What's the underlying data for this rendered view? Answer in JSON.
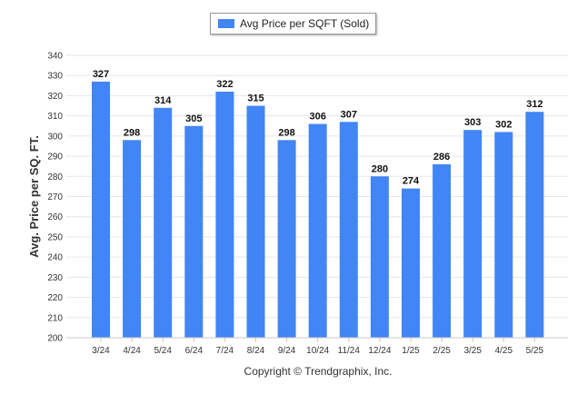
{
  "legend": {
    "label": "Avg Price per SQFT (Sold)",
    "color": "#4285f4"
  },
  "footer": {
    "credit": "Copyright © Trendgraphix, Inc."
  },
  "chart_data": {
    "type": "bar",
    "categories": [
      "3/24",
      "4/24",
      "5/24",
      "6/24",
      "7/24",
      "8/24",
      "9/24",
      "10/24",
      "11/24",
      "12/24",
      "1/25",
      "2/25",
      "3/25",
      "4/25",
      "5/25"
    ],
    "series": [
      {
        "name": "Avg Price per SQFT (Sold)",
        "values": [
          327,
          298,
          314,
          305,
          322,
          315,
          298,
          306,
          307,
          280,
          274,
          286,
          303,
          302,
          312
        ]
      }
    ],
    "ylabel": "Avg. Price per SQ. FT.",
    "xlabel": "",
    "ylim": [
      200,
      340
    ],
    "yticks": [
      200,
      210,
      220,
      230,
      240,
      250,
      260,
      270,
      280,
      290,
      300,
      310,
      320,
      330,
      340
    ],
    "grid": true,
    "legend_position": "top-center",
    "data_labels": true
  }
}
